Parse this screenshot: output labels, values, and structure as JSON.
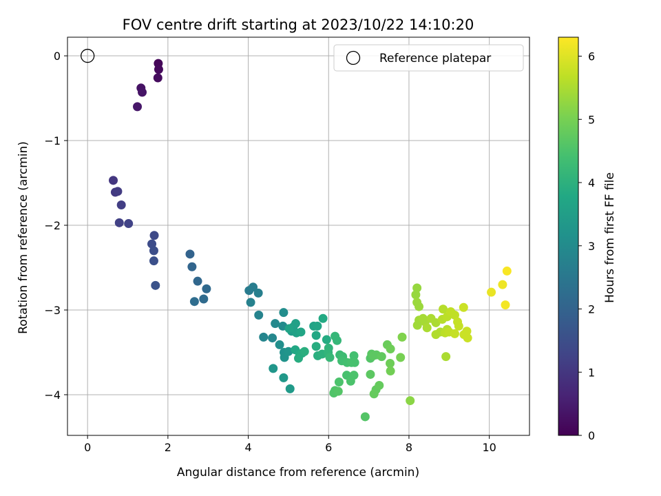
{
  "chart_data": {
    "type": "scatter",
    "title": "FOV centre drift starting at 2023/10/22 14:10:20",
    "xlabel": "Angular distance from reference (arcmin)",
    "ylabel": "Rotation from reference (arcmin)",
    "xlim": [
      -0.5,
      11.0
    ],
    "ylim": [
      -4.48,
      0.22
    ],
    "xticks": [
      0,
      2,
      4,
      6,
      8,
      10
    ],
    "yticks": [
      0,
      -1,
      -2,
      -3,
      -4
    ],
    "xtick_labels": [
      "0",
      "2",
      "4",
      "6",
      "8",
      "10"
    ],
    "ytick_labels": [
      "0",
      "−1",
      "−2",
      "−3",
      "−4"
    ],
    "grid": true,
    "colormap": "viridis",
    "colorbar": {
      "label": "Hours from first FF file",
      "range": [
        0,
        6.3
      ],
      "ticks": [
        0,
        1,
        2,
        3,
        4,
        5,
        6
      ],
      "tick_labels": [
        "0",
        "1",
        "2",
        "3",
        "4",
        "5",
        "6"
      ]
    },
    "legend": {
      "position": "top-right",
      "entries": [
        {
          "label": "Reference platepar",
          "marker": "open-circle"
        }
      ]
    },
    "reference_point": {
      "x": 0,
      "y": 0
    },
    "series": [
      {
        "points": [
          [
            1.76,
            -0.09,
            0.1
          ],
          [
            1.77,
            -0.16,
            0.15
          ],
          [
            1.75,
            -0.26,
            0.2
          ],
          [
            1.33,
            -0.38,
            0.3
          ],
          [
            1.36,
            -0.43,
            0.35
          ],
          [
            1.24,
            -0.6,
            0.4
          ],
          [
            0.64,
            -1.47,
            1.0
          ],
          [
            0.69,
            -1.61,
            1.05
          ],
          [
            0.75,
            -1.6,
            1.1
          ],
          [
            0.84,
            -1.76,
            1.15
          ],
          [
            0.79,
            -1.97,
            1.2
          ],
          [
            1.02,
            -1.98,
            1.25
          ],
          [
            1.66,
            -2.12,
            1.4
          ],
          [
            1.6,
            -2.22,
            1.45
          ],
          [
            1.65,
            -2.3,
            1.5
          ],
          [
            1.65,
            -2.42,
            1.55
          ],
          [
            1.69,
            -2.71,
            1.6
          ],
          [
            2.55,
            -2.34,
            2.0
          ],
          [
            2.6,
            -2.49,
            2.05
          ],
          [
            2.74,
            -2.66,
            2.1
          ],
          [
            2.96,
            -2.75,
            2.15
          ],
          [
            2.89,
            -2.87,
            2.2
          ],
          [
            2.66,
            -2.9,
            2.25
          ],
          [
            4.02,
            -2.77,
            2.6
          ],
          [
            4.12,
            -2.73,
            2.65
          ],
          [
            4.25,
            -2.8,
            2.7
          ],
          [
            4.06,
            -2.91,
            2.75
          ],
          [
            4.26,
            -3.06,
            2.8
          ],
          [
            4.38,
            -3.32,
            2.85
          ],
          [
            4.6,
            -3.33,
            2.9
          ],
          [
            4.67,
            -3.16,
            2.95
          ],
          [
            4.86,
            -3.19,
            3.0
          ],
          [
            4.88,
            -3.03,
            3.05
          ],
          [
            4.78,
            -3.41,
            3.1
          ],
          [
            4.89,
            -3.5,
            3.15
          ],
          [
            4.9,
            -3.56,
            3.2
          ],
          [
            5.0,
            -3.49,
            3.25
          ],
          [
            4.62,
            -3.69,
            3.3
          ],
          [
            4.88,
            -3.8,
            3.35
          ],
          [
            5.04,
            -3.93,
            3.4
          ],
          [
            5.08,
            -3.25,
            3.45
          ],
          [
            5.12,
            -3.2,
            3.5
          ],
          [
            5.18,
            -3.16,
            3.55
          ],
          [
            5.2,
            -3.27,
            3.6
          ],
          [
            5.02,
            -3.22,
            3.65
          ],
          [
            5.31,
            -3.26,
            3.7
          ],
          [
            5.17,
            -3.47,
            3.75
          ],
          [
            5.28,
            -3.52,
            3.8
          ],
          [
            5.34,
            -3.51,
            3.85
          ],
          [
            5.25,
            -3.57,
            3.9
          ],
          [
            5.4,
            -3.49,
            3.95
          ],
          [
            5.63,
            -3.19,
            3.65
          ],
          [
            5.72,
            -3.19,
            3.7
          ],
          [
            5.69,
            -3.3,
            3.75
          ],
          [
            5.86,
            -3.1,
            3.8
          ],
          [
            5.95,
            -3.35,
            3.85
          ],
          [
            5.69,
            -3.43,
            3.9
          ],
          [
            5.73,
            -3.54,
            3.95
          ],
          [
            5.84,
            -3.52,
            4.0
          ],
          [
            6.0,
            -3.45,
            4.05
          ],
          [
            5.99,
            -3.5,
            4.1
          ],
          [
            6.16,
            -3.31,
            4.15
          ],
          [
            6.21,
            -3.36,
            4.15
          ],
          [
            6.03,
            -3.56,
            4.2
          ],
          [
            6.28,
            -3.53,
            4.25
          ],
          [
            6.35,
            -3.55,
            4.3
          ],
          [
            6.33,
            -3.6,
            4.35
          ],
          [
            6.46,
            -3.62,
            4.4
          ],
          [
            6.57,
            -3.62,
            4.45
          ],
          [
            6.63,
            -3.54,
            4.4
          ],
          [
            6.65,
            -3.62,
            4.45
          ],
          [
            6.45,
            -3.77,
            4.45
          ],
          [
            6.63,
            -3.77,
            4.5
          ],
          [
            6.55,
            -3.84,
            4.5
          ],
          [
            6.26,
            -3.85,
            4.5
          ],
          [
            6.16,
            -3.95,
            4.55
          ],
          [
            6.13,
            -3.98,
            4.55
          ],
          [
            6.24,
            -3.96,
            4.6
          ],
          [
            6.91,
            -4.26,
            4.6
          ],
          [
            7.04,
            -3.57,
            4.6
          ],
          [
            7.07,
            -3.52,
            4.65
          ],
          [
            7.11,
            -3.54,
            4.7
          ],
          [
            7.19,
            -3.53,
            4.7
          ],
          [
            7.32,
            -3.55,
            4.75
          ],
          [
            7.04,
            -3.76,
            4.7
          ],
          [
            7.18,
            -3.94,
            4.75
          ],
          [
            7.26,
            -3.89,
            4.8
          ],
          [
            7.13,
            -3.99,
            4.8
          ],
          [
            7.46,
            -3.41,
            4.85
          ],
          [
            7.54,
            -3.46,
            4.9
          ],
          [
            7.53,
            -3.63,
            4.9
          ],
          [
            7.54,
            -3.72,
            4.95
          ],
          [
            7.79,
            -3.56,
            5.0
          ],
          [
            7.83,
            -3.32,
            5.1
          ],
          [
            8.03,
            -4.07,
            5.2
          ],
          [
            8.2,
            -2.74,
            5.3
          ],
          [
            8.17,
            -2.82,
            5.3
          ],
          [
            8.2,
            -2.91,
            5.35
          ],
          [
            8.25,
            -2.96,
            5.35
          ],
          [
            8.25,
            -3.12,
            5.4
          ],
          [
            8.21,
            -3.18,
            5.4
          ],
          [
            8.35,
            -3.1,
            5.45
          ],
          [
            8.4,
            -3.14,
            5.45
          ],
          [
            8.45,
            -3.21,
            5.5
          ],
          [
            8.55,
            -3.1,
            5.5
          ],
          [
            8.67,
            -3.15,
            5.5
          ],
          [
            8.67,
            -3.29,
            5.55
          ],
          [
            8.78,
            -3.26,
            5.55
          ],
          [
            8.85,
            -2.99,
            5.6
          ],
          [
            8.83,
            -3.11,
            5.6
          ],
          [
            8.95,
            -3.08,
            5.65
          ],
          [
            8.95,
            -3.23,
            5.6
          ],
          [
            8.9,
            -3.27,
            5.65
          ],
          [
            9.0,
            -3.26,
            5.7
          ],
          [
            9.04,
            -3.02,
            5.7
          ],
          [
            9.14,
            -3.06,
            5.7
          ],
          [
            9.21,
            -3.14,
            5.75
          ],
          [
            9.24,
            -3.19,
            5.75
          ],
          [
            9.14,
            -3.28,
            5.75
          ],
          [
            9.36,
            -2.97,
            5.8
          ],
          [
            9.37,
            -3.29,
            5.8
          ],
          [
            9.46,
            -3.33,
            5.8
          ],
          [
            9.44,
            -3.25,
            5.8
          ],
          [
            8.92,
            -3.55,
            5.5
          ],
          [
            10.05,
            -2.79,
            6.1
          ],
          [
            10.33,
            -2.7,
            6.15
          ],
          [
            10.4,
            -2.94,
            6.2
          ],
          [
            10.44,
            -2.54,
            6.25
          ]
        ]
      }
    ]
  }
}
